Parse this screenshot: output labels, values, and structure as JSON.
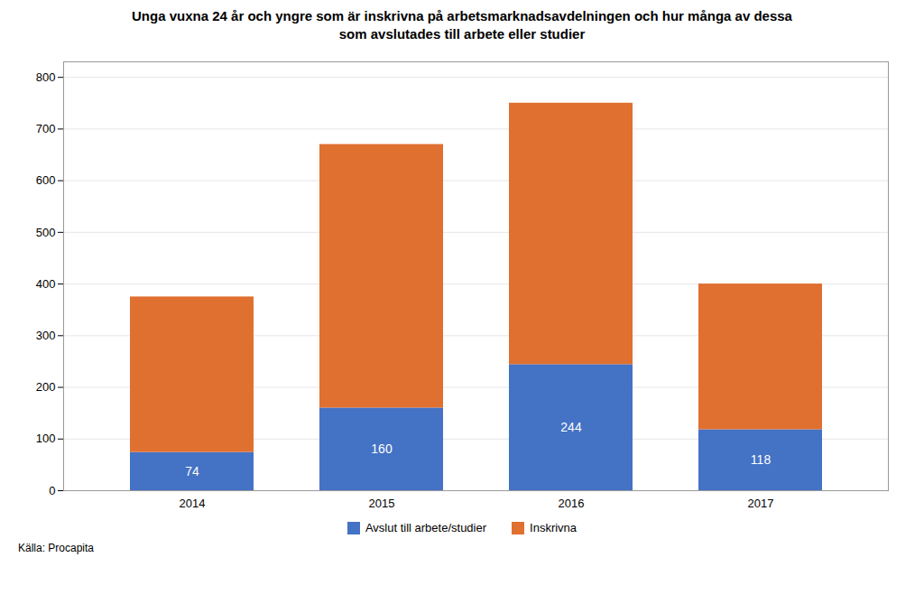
{
  "chart_data": {
    "type": "bar",
    "stacked": true,
    "title": "Unga vuxna 24 år och yngre som är inskrivna på arbetsmarknadsavdelningen och hur många av dessa\nsom avslutades till arbete eller studier",
    "categories": [
      "2014",
      "2015",
      "2016",
      "2017"
    ],
    "series": [
      {
        "name": "Avslut till arbete/studier",
        "color": "#4472C4",
        "values": [
          74,
          160,
          244,
          118
        ],
        "data_labels": true
      },
      {
        "name": "Inskrivna",
        "color": "#E07030",
        "values": [
          301,
          510,
          506,
          282
        ]
      }
    ],
    "ylim": [
      0,
      830
    ],
    "yticks": [
      0,
      100,
      200,
      300,
      400,
      500,
      600,
      700,
      800
    ],
    "grid": true,
    "legend": "bottom",
    "annotations": [
      "Källa: Procapita"
    ]
  }
}
